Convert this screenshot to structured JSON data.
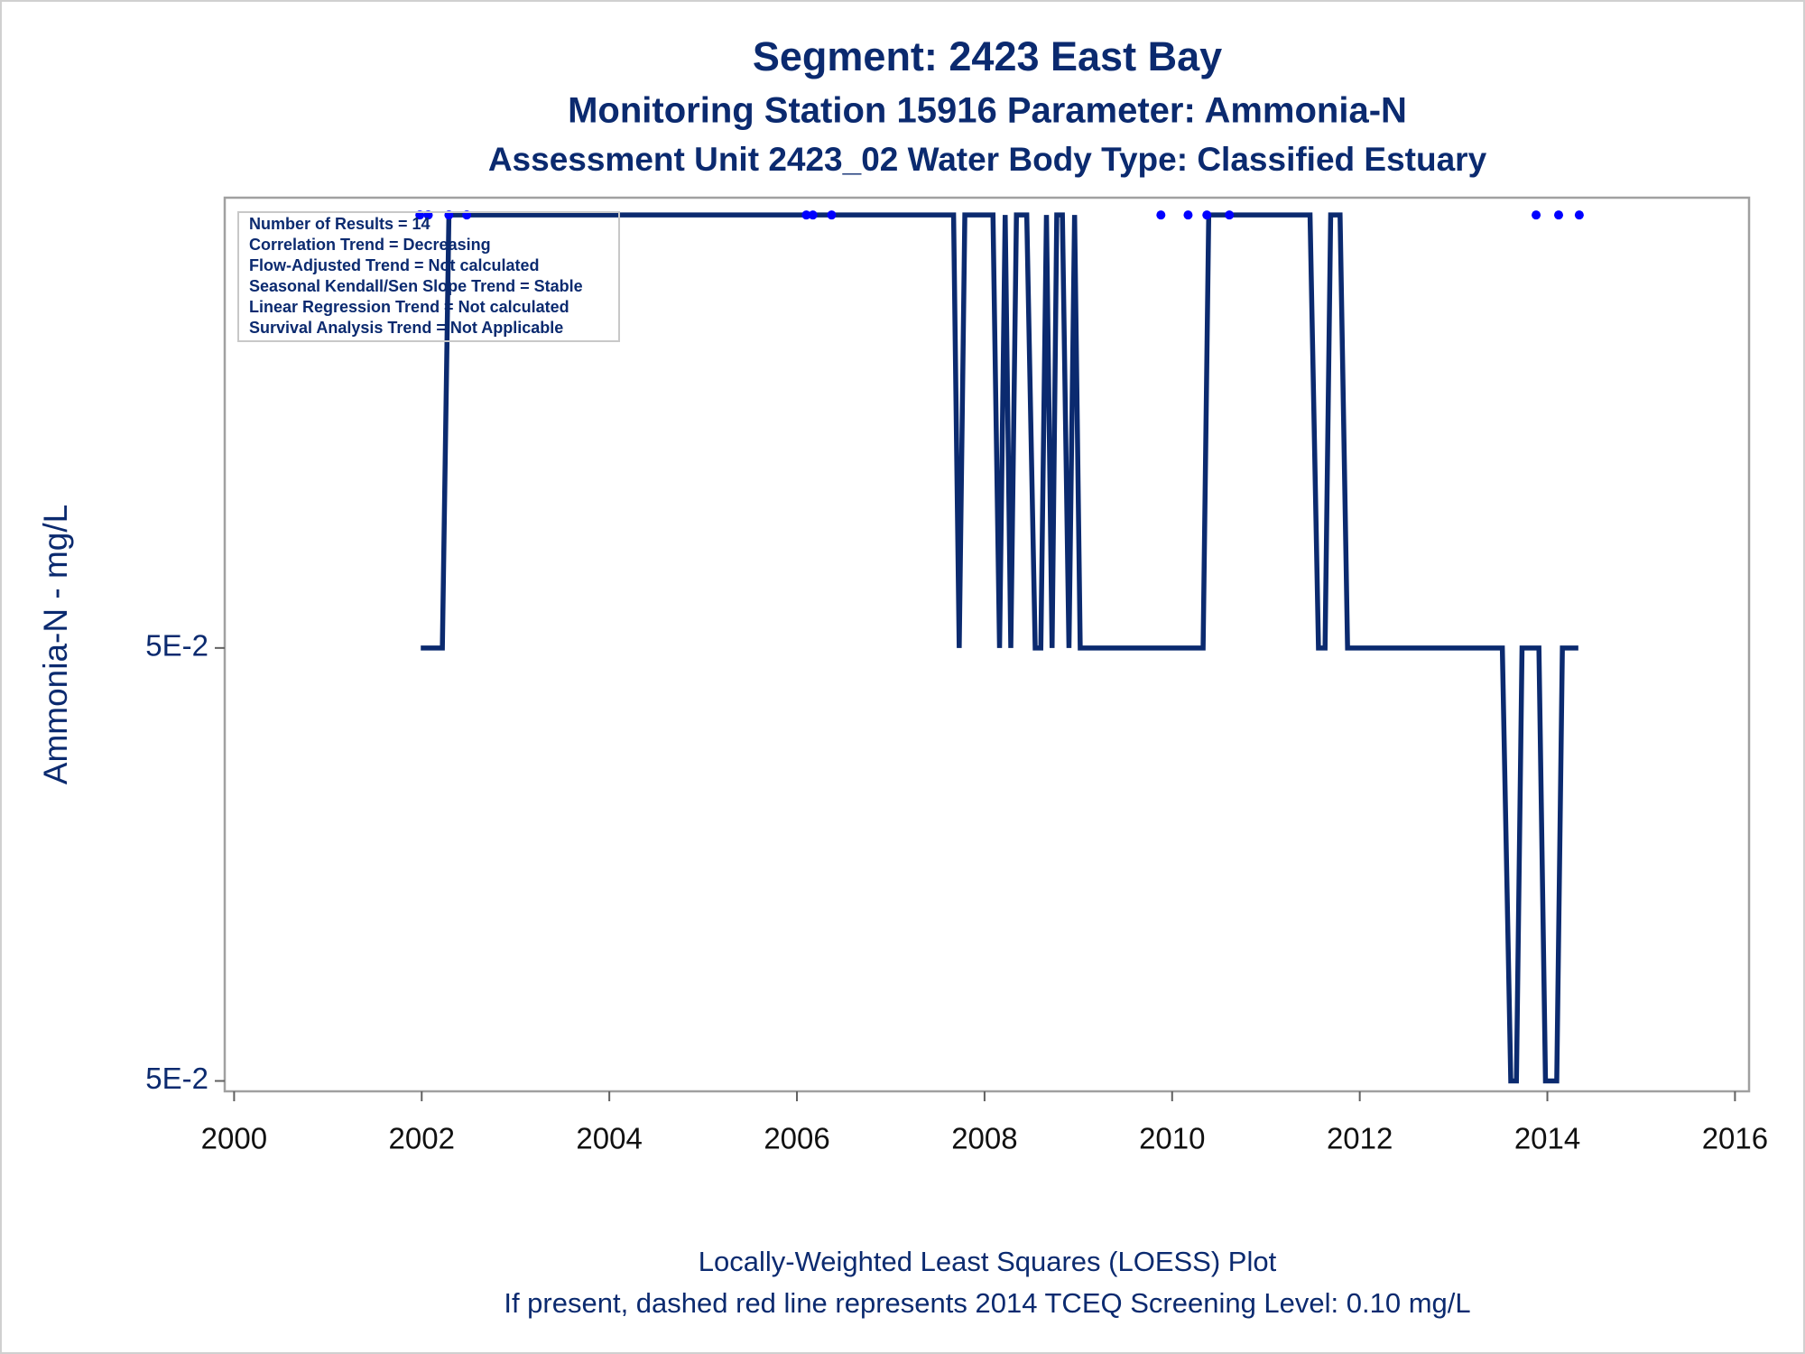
{
  "chart_data": {
    "type": "line",
    "title": "Segment: 2423  East Bay",
    "subtitle": "Monitoring Station 15916 Parameter: Ammonia-N",
    "subtitle2": "Assessment Unit 2423_02   Water Body Type: Classified Estuary",
    "y_label": "Ammonia-N - mg/L",
    "footnotes": [
      "Locally-Weighted Least Squares (LOESS) Plot",
      "If present, dashed red line represents 2014 TCEQ Screening Level: 0.10 mg/L"
    ],
    "annotations": [
      "Number of Results = 14",
      "Correlation Trend = Decreasing",
      "Flow-Adjusted Trend = Not calculated",
      "Seasonal Kendall/Sen Slope Trend = Stable",
      "Linear Regression Trend = Not calculated",
      "Survival Analysis Trend = Not Applicable"
    ],
    "xlim": [
      1999.9,
      2016.15
    ],
    "xticks": [
      2000,
      2002,
      2004,
      2006,
      2008,
      2010,
      2012,
      2014,
      2016
    ],
    "ylim": [
      0.0499998976,
      0.050000104
    ],
    "yticks": [
      {
        "value": 0.0499999,
        "label": "5E-2"
      },
      {
        "value": 0.05,
        "label": "5E-2"
      }
    ],
    "line": {
      "color": "#0b2a6f",
      "x": [
        2001.99,
        2002.22,
        2002.29,
        2007.67,
        2007.73,
        2007.79,
        2008.09,
        2008.16,
        2008.22,
        2008.28,
        2008.34,
        2008.45,
        2008.54,
        2008.6,
        2008.66,
        2008.72,
        2008.77,
        2008.83,
        2008.9,
        2008.96,
        2009.02,
        2010.33,
        2010.39,
        2011.47,
        2011.56,
        2011.63,
        2011.69,
        2011.79,
        2011.87,
        2013.52,
        2013.61,
        2013.67,
        2013.73,
        2013.91,
        2013.98,
        2014.1,
        2014.16,
        2014.33
      ],
      "values": [
        0.05,
        0.05,
        0.0500001,
        0.0500001,
        0.05,
        0.0500001,
        0.0500001,
        0.05,
        0.0500001,
        0.05,
        0.0500001,
        0.0500001,
        0.05,
        0.05,
        0.0500001,
        0.05,
        0.0500001,
        0.0500001,
        0.05,
        0.0500001,
        0.05,
        0.05,
        0.0500001,
        0.0500001,
        0.05,
        0.05,
        0.0500001,
        0.0500001,
        0.05,
        0.05,
        0.0499999,
        0.0499999,
        0.05,
        0.05,
        0.0499999,
        0.0499999,
        0.05,
        0.05
      ]
    },
    "points": {
      "color": "#0000ff",
      "x": [
        2001.98,
        2002.07,
        2002.29,
        2002.48,
        2006.1,
        2006.17,
        2006.37,
        2009.88,
        2010.17,
        2010.37,
        2010.61,
        2013.88,
        2014.12,
        2014.34
      ],
      "values": [
        0.0500001,
        0.0500001,
        0.0500001,
        0.0500001,
        0.0500001,
        0.0500001,
        0.0500001,
        0.0500001,
        0.0500001,
        0.0500001,
        0.0500001,
        0.0500001,
        0.0500001,
        0.0500001
      ]
    }
  }
}
